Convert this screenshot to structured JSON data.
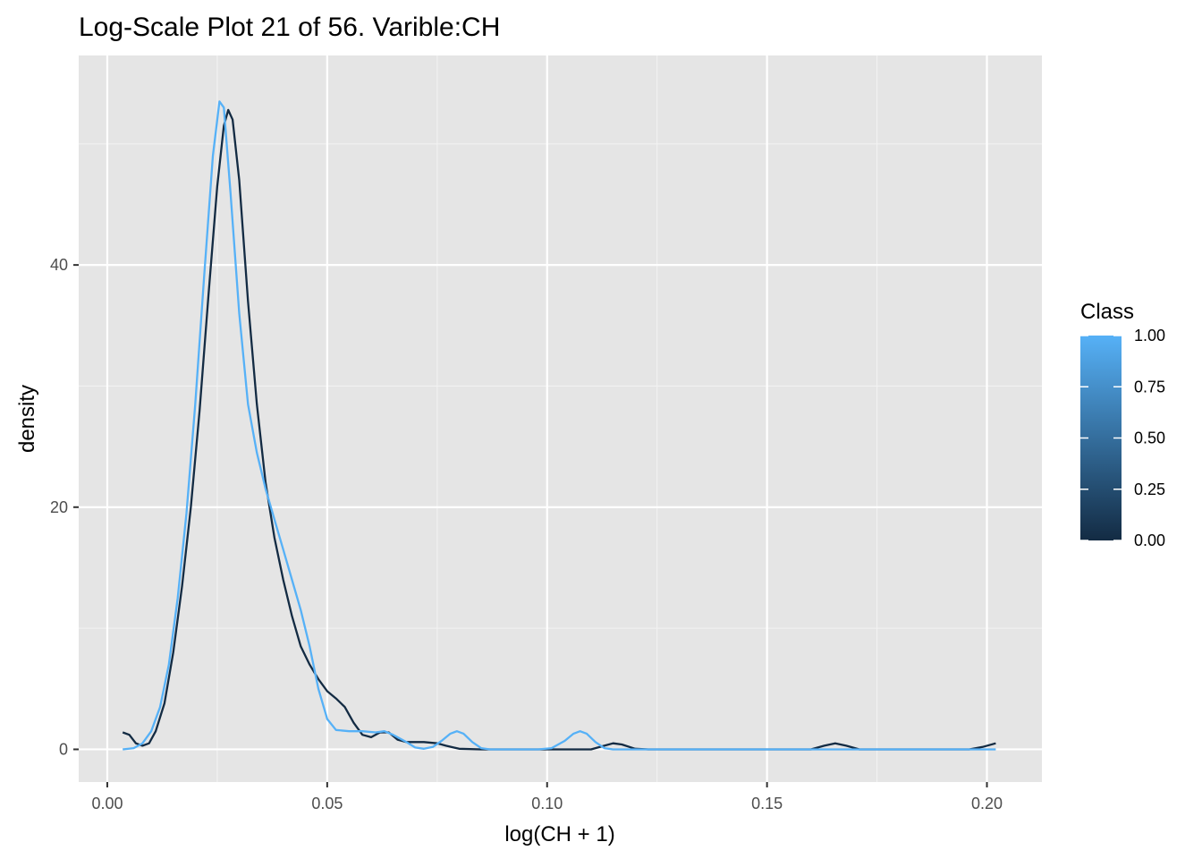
{
  "chart_data": {
    "type": "line",
    "title": "Log-Scale Plot 21 of 56. Varible:CH",
    "xlabel": "log(CH + 1)",
    "ylabel": "density",
    "xlim": [
      -0.0065,
      0.2125
    ],
    "ylim": [
      -2.7,
      57.3
    ],
    "x_ticks": [
      0.0,
      0.05,
      0.1,
      0.15,
      0.2
    ],
    "x_tick_labels": [
      "0.00",
      "0.05",
      "0.10",
      "0.15",
      "0.20"
    ],
    "y_ticks": [
      0,
      20,
      40
    ],
    "y_tick_labels": [
      "0",
      "20",
      "40"
    ],
    "grid": true,
    "legend": {
      "title": "Class",
      "position": "right",
      "type": "colorbar",
      "labels": [
        "1.00",
        "0.75",
        "0.50",
        "0.25",
        "0.00"
      ],
      "low_color": "#132B43",
      "high_color": "#56B1F7"
    },
    "series": [
      {
        "class_value": 0.0,
        "color": "#132B43",
        "points": [
          [
            0.0035,
            1.4
          ],
          [
            0.005,
            1.2
          ],
          [
            0.0065,
            0.5
          ],
          [
            0.008,
            0.3
          ],
          [
            0.0095,
            0.5
          ],
          [
            0.011,
            1.5
          ],
          [
            0.013,
            3.8
          ],
          [
            0.015,
            8.0
          ],
          [
            0.017,
            13.5
          ],
          [
            0.019,
            20.0
          ],
          [
            0.021,
            28.0
          ],
          [
            0.023,
            37.5
          ],
          [
            0.025,
            46.5
          ],
          [
            0.0265,
            51.5
          ],
          [
            0.0275,
            52.8
          ],
          [
            0.0285,
            52.0
          ],
          [
            0.03,
            47.0
          ],
          [
            0.032,
            37.0
          ],
          [
            0.034,
            28.5
          ],
          [
            0.036,
            22.0
          ],
          [
            0.038,
            17.5
          ],
          [
            0.04,
            14.0
          ],
          [
            0.042,
            11.0
          ],
          [
            0.044,
            8.5
          ],
          [
            0.046,
            7.0
          ],
          [
            0.048,
            5.8
          ],
          [
            0.05,
            4.8
          ],
          [
            0.052,
            4.2
          ],
          [
            0.054,
            3.5
          ],
          [
            0.056,
            2.2
          ],
          [
            0.058,
            1.2
          ],
          [
            0.06,
            1.0
          ],
          [
            0.062,
            1.4
          ],
          [
            0.064,
            1.4
          ],
          [
            0.066,
            0.8
          ],
          [
            0.068,
            0.6
          ],
          [
            0.072,
            0.6
          ],
          [
            0.075,
            0.5
          ],
          [
            0.077,
            0.3
          ],
          [
            0.08,
            0.05
          ],
          [
            0.085,
            0.0
          ],
          [
            0.095,
            0.0
          ],
          [
            0.105,
            0.0
          ],
          [
            0.11,
            0.0
          ],
          [
            0.113,
            0.3
          ],
          [
            0.115,
            0.5
          ],
          [
            0.117,
            0.4
          ],
          [
            0.12,
            0.05
          ],
          [
            0.123,
            0.0
          ],
          [
            0.15,
            0.0
          ],
          [
            0.16,
            0.0
          ],
          [
            0.163,
            0.3
          ],
          [
            0.1655,
            0.5
          ],
          [
            0.168,
            0.3
          ],
          [
            0.171,
            0.0
          ],
          [
            0.19,
            0.0
          ],
          [
            0.196,
            0.0
          ],
          [
            0.199,
            0.2
          ],
          [
            0.202,
            0.5
          ]
        ]
      },
      {
        "class_value": 1.0,
        "color": "#56B1F7",
        "points": [
          [
            0.0035,
            0.0
          ],
          [
            0.006,
            0.1
          ],
          [
            0.008,
            0.5
          ],
          [
            0.01,
            1.5
          ],
          [
            0.012,
            3.5
          ],
          [
            0.014,
            7.0
          ],
          [
            0.016,
            12.5
          ],
          [
            0.018,
            19.5
          ],
          [
            0.02,
            28.5
          ],
          [
            0.022,
            39.0
          ],
          [
            0.024,
            49.0
          ],
          [
            0.0255,
            53.5
          ],
          [
            0.0265,
            53.0
          ],
          [
            0.028,
            46.0
          ],
          [
            0.03,
            36.0
          ],
          [
            0.032,
            28.5
          ],
          [
            0.034,
            24.5
          ],
          [
            0.036,
            21.5
          ],
          [
            0.038,
            19.0
          ],
          [
            0.04,
            16.5
          ],
          [
            0.042,
            14.0
          ],
          [
            0.044,
            11.5
          ],
          [
            0.046,
            8.5
          ],
          [
            0.048,
            5.0
          ],
          [
            0.05,
            2.5
          ],
          [
            0.052,
            1.6
          ],
          [
            0.055,
            1.5
          ],
          [
            0.058,
            1.5
          ],
          [
            0.061,
            1.4
          ],
          [
            0.063,
            1.5
          ],
          [
            0.065,
            1.2
          ],
          [
            0.068,
            0.6
          ],
          [
            0.07,
            0.15
          ],
          [
            0.072,
            0.05
          ],
          [
            0.074,
            0.2
          ],
          [
            0.076,
            0.7
          ],
          [
            0.078,
            1.3
          ],
          [
            0.0795,
            1.5
          ],
          [
            0.081,
            1.3
          ],
          [
            0.083,
            0.6
          ],
          [
            0.085,
            0.1
          ],
          [
            0.087,
            0.0
          ],
          [
            0.098,
            0.0
          ],
          [
            0.101,
            0.1
          ],
          [
            0.104,
            0.7
          ],
          [
            0.106,
            1.3
          ],
          [
            0.1075,
            1.5
          ],
          [
            0.109,
            1.3
          ],
          [
            0.111,
            0.6
          ],
          [
            0.113,
            0.1
          ],
          [
            0.115,
            0.0
          ],
          [
            0.15,
            0.0
          ],
          [
            0.18,
            0.0
          ],
          [
            0.202,
            0.0
          ]
        ]
      }
    ]
  }
}
